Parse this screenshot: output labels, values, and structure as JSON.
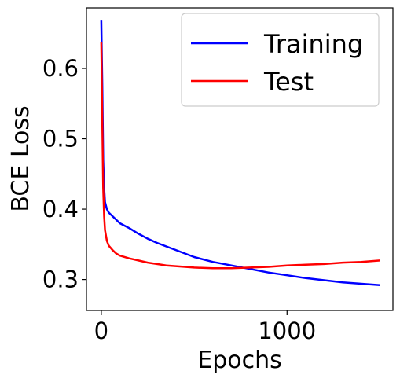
{
  "chart_data": {
    "type": "line",
    "title": "",
    "xlabel": "Epochs",
    "ylabel": "BCE Loss",
    "xlim": [
      -80,
      1570
    ],
    "ylim": [
      0.256,
      0.686
    ],
    "xticks": [
      0,
      1000
    ],
    "xtick_labels": [
      "0",
      "1000"
    ],
    "yticks": [
      0.3,
      0.4,
      0.5,
      0.6
    ],
    "ytick_labels": [
      "0.3",
      "0.4",
      "0.5",
      "0.6"
    ],
    "grid": false,
    "legend_position": "top-right",
    "series": [
      {
        "name": "Training",
        "color": "#0000ff",
        "x": [
          0,
          5,
          10,
          15,
          20,
          30,
          40,
          60,
          80,
          100,
          150,
          200,
          250,
          300,
          350,
          400,
          450,
          500,
          600,
          700,
          800,
          900,
          1000,
          1100,
          1200,
          1300,
          1400,
          1500
        ],
        "y": [
          0.668,
          0.58,
          0.47,
          0.43,
          0.41,
          0.4,
          0.395,
          0.39,
          0.385,
          0.38,
          0.373,
          0.365,
          0.358,
          0.352,
          0.347,
          0.342,
          0.337,
          0.332,
          0.325,
          0.32,
          0.315,
          0.31,
          0.306,
          0.302,
          0.299,
          0.296,
          0.294,
          0.292
        ]
      },
      {
        "name": "Test",
        "color": "#ff0000",
        "x": [
          0,
          5,
          10,
          15,
          20,
          30,
          40,
          60,
          80,
          100,
          150,
          200,
          250,
          300,
          350,
          400,
          450,
          500,
          600,
          700,
          800,
          900,
          1000,
          1100,
          1200,
          1300,
          1400,
          1500
        ],
        "y": [
          0.638,
          0.53,
          0.43,
          0.39,
          0.37,
          0.355,
          0.348,
          0.342,
          0.337,
          0.334,
          0.33,
          0.327,
          0.324,
          0.322,
          0.32,
          0.319,
          0.318,
          0.317,
          0.316,
          0.316,
          0.317,
          0.318,
          0.32,
          0.321,
          0.322,
          0.324,
          0.325,
          0.327
        ]
      }
    ]
  }
}
